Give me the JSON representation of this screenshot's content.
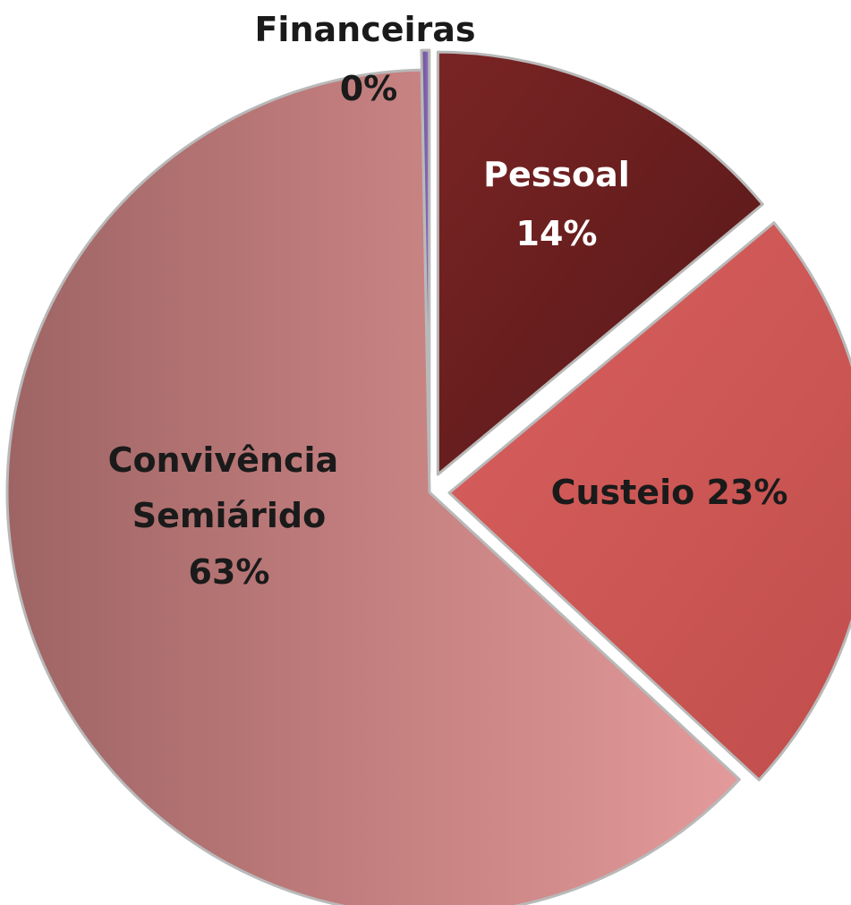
{
  "chart_data": {
    "type": "pie",
    "slices": [
      {
        "label": "Pessoal",
        "percent_label": "14%",
        "value": 14,
        "color": "#6b2020",
        "label_color": "#ffffff",
        "exploded": true
      },
      {
        "label": "Custeio",
        "percent_label": "23%",
        "value": 23,
        "color": "#cf5a58",
        "label_color": "#1a1a1a",
        "exploded": true
      },
      {
        "label": "Convivência Semiárido",
        "percent_label": "63%",
        "value": 63,
        "color": "#c98484",
        "label_color": "#1a1a1a",
        "exploded": false
      },
      {
        "label": "Financeiras",
        "percent_label": "0%",
        "value": 0.3,
        "color": "#7d5fa8",
        "label_color": "#1a1a1a",
        "exploded": true
      }
    ]
  }
}
